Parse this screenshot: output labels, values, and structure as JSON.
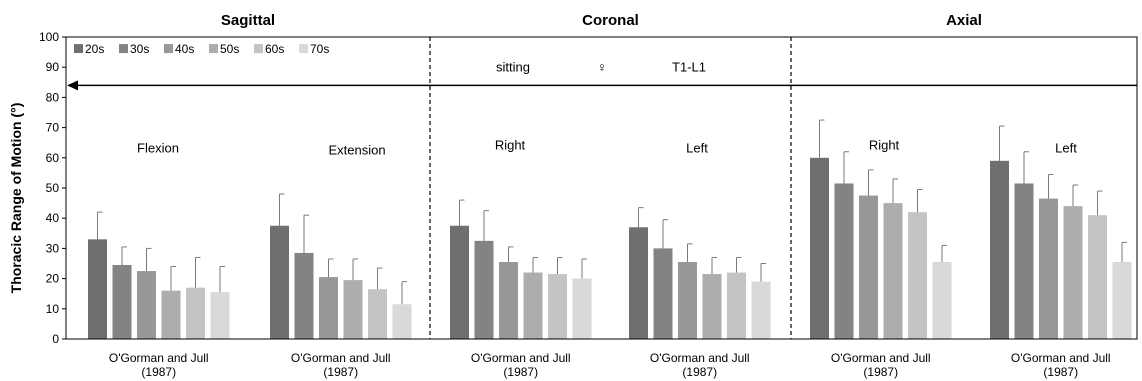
{
  "chart_data": {
    "type": "bar",
    "ylabel": "Thoracic Range of Motion (°)",
    "ylim": [
      0,
      100
    ],
    "yticks": [
      0,
      10,
      20,
      30,
      40,
      50,
      60,
      70,
      80,
      90,
      100
    ],
    "legend_position": "top-left",
    "sections": [
      {
        "title": "Sagittal"
      },
      {
        "title": "Coronal"
      },
      {
        "title": "Axial"
      }
    ],
    "annotations": {
      "posture": "sitting",
      "sex": "♀",
      "level": "T1-L1"
    },
    "series": [
      {
        "name": "20s",
        "color": "#6f6f6f"
      },
      {
        "name": "30s",
        "color": "#838383"
      },
      {
        "name": "40s",
        "color": "#989898"
      },
      {
        "name": "50s",
        "color": "#adadad"
      },
      {
        "name": "60s",
        "color": "#c4c4c4"
      },
      {
        "name": "70s",
        "color": "#d9d9d9"
      }
    ],
    "groups": [
      {
        "label": "Flexion",
        "category": [
          "O'Gorman and Jull",
          "(1987)"
        ],
        "values": [
          33,
          24.5,
          22.5,
          16,
          17,
          15.5
        ],
        "errors": [
          9,
          6,
          7.5,
          8,
          10,
          8.5
        ]
      },
      {
        "label": "Extension",
        "category": [
          "O'Gorman and Jull",
          "(1987)"
        ],
        "values": [
          37.5,
          28.5,
          20.5,
          19.5,
          16.5,
          11.5
        ],
        "errors": [
          10.5,
          12.5,
          6,
          7,
          7,
          7.5
        ]
      },
      {
        "label": "Right",
        "category": [
          "O'Gorman and Jull",
          "(1987)"
        ],
        "values": [
          37.5,
          32.5,
          25.5,
          22,
          21.5,
          20
        ],
        "errors": [
          8.5,
          10,
          5,
          5,
          5.5,
          6.5
        ]
      },
      {
        "label": "Left",
        "category": [
          "O'Gorman and Jull",
          "(1987)"
        ],
        "values": [
          37,
          30,
          25.5,
          21.5,
          22,
          19
        ],
        "errors": [
          6.5,
          9.5,
          6,
          5.5,
          5,
          6
        ]
      },
      {
        "label": "Right",
        "category": [
          "O'Gorman and Jull",
          "(1987)"
        ],
        "values": [
          60,
          51.5,
          47.5,
          45,
          42,
          25.5
        ],
        "errors": [
          12.5,
          10.5,
          8.5,
          8,
          7.5,
          5.5
        ]
      },
      {
        "label": "Left",
        "category": [
          "O'Gorman and Jull",
          "(1987)"
        ],
        "values": [
          59,
          51.5,
          46.5,
          44,
          41,
          25.5
        ],
        "errors": [
          11.5,
          10.5,
          8,
          7,
          8,
          6.5
        ]
      }
    ]
  }
}
